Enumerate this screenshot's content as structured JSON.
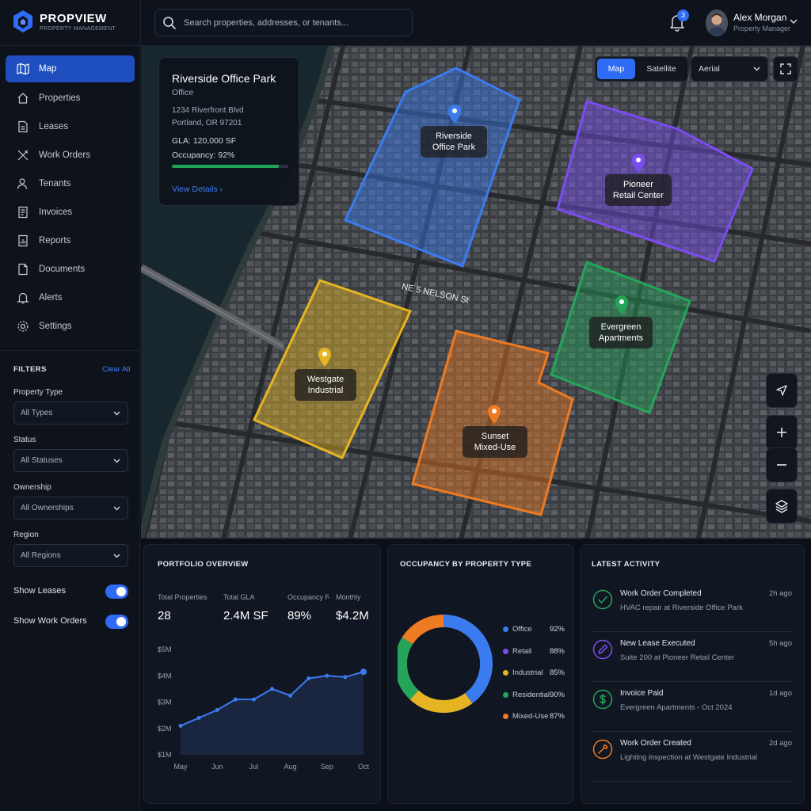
{
  "app": {
    "name": "PROPVIEW",
    "tagline": "PROPERTY MANAGEMENT"
  },
  "header": {
    "search_placeholder": "Search properties, addresses, or tenants...",
    "notification_count": "3",
    "user": {
      "name": "Alex Morgan",
      "role": "Property Manager"
    }
  },
  "sidebar": {
    "items": [
      {
        "label": "Map",
        "icon": "map-icon",
        "active": true
      },
      {
        "label": "Properties",
        "icon": "home-icon"
      },
      {
        "label": "Leases",
        "icon": "document-icon"
      },
      {
        "label": "Work Orders",
        "icon": "tools-icon"
      },
      {
        "label": "Tenants",
        "icon": "users-icon"
      },
      {
        "label": "Invoices",
        "icon": "invoice-icon"
      },
      {
        "label": "Reports",
        "icon": "report-icon"
      },
      {
        "label": "Documents",
        "icon": "file-icon"
      },
      {
        "label": "Alerts",
        "icon": "bell-icon"
      },
      {
        "label": "Settings",
        "icon": "gear-icon"
      }
    ]
  },
  "filters": {
    "title": "FILTERS",
    "clear_all": "Clear All",
    "property_type": {
      "label": "Property Type",
      "value": "All Types"
    },
    "status": {
      "label": "Status",
      "value": "All Statuses"
    },
    "ownership": {
      "label": "Ownership",
      "value": "All Ownerships"
    },
    "region": {
      "label": "Region",
      "value": "All Regions"
    },
    "show_leases": {
      "label": "Show Leases",
      "on": true
    },
    "show_work_orders": {
      "label": "Show Work Orders",
      "on": true
    }
  },
  "map": {
    "view_options": [
      "Map",
      "Satellite"
    ],
    "active_view": "Map",
    "layer": "Aerial",
    "info_card": {
      "title": "Riverside Office Park",
      "type": "Office",
      "address_line1": "1234 Riverfront Blvd",
      "address_line2": "Portland, OR 97201",
      "gla": "GLA: 120,000 SF",
      "occupancy": "Occupancy: 92%",
      "occupancy_value": 0.92,
      "link": "View Details"
    },
    "properties": [
      {
        "name": "Riverside Office Park",
        "color": "#3b7bf0"
      },
      {
        "name": "Pioneer Retail Center",
        "color": "#7b4df0"
      },
      {
        "name": "Evergreen Apartments",
        "color": "#25a55a"
      },
      {
        "name": "Westgate Industrial",
        "color": "#e6b422"
      },
      {
        "name": "Sunset Mixed-Use",
        "color": "#ee7a22"
      }
    ],
    "street_labels": [
      "NE 5 NELSON St"
    ]
  },
  "portfolio": {
    "title": "PORTFOLIO OVERVIEW",
    "stats": [
      {
        "label": "Total Properties",
        "value": "28"
      },
      {
        "label": "Total GLA",
        "value": "2.4M SF"
      },
      {
        "label": "Occupancy Rate",
        "value": "89%"
      },
      {
        "label": "Monthly",
        "value": "$4.2M"
      }
    ],
    "chart_data": {
      "type": "line",
      "x": [
        "May",
        "",
        "Jun",
        "",
        "Jul",
        "",
        "Aug",
        "",
        "Sep",
        "",
        "Oct"
      ],
      "tick_labels_x": [
        "May",
        "Jun",
        "Jul",
        "Aug",
        "Sep",
        "Oct"
      ],
      "values": [
        2.1,
        2.4,
        2.7,
        3.1,
        3.1,
        3.5,
        3.25,
        3.9,
        4.0,
        3.95,
        4.15
      ],
      "ylim": [
        1,
        5
      ],
      "tick_labels_y": [
        "$5M",
        "$4M",
        "$3M",
        "$2M",
        "$1M"
      ],
      "color": "#3b7bf0"
    }
  },
  "occupancy": {
    "title": "OCCUPANCY BY PROPERTY TYPE",
    "chart_data": {
      "type": "pie",
      "categories": [
        "Office",
        "Retail",
        "Industrial",
        "Residential",
        "Mixed-Use"
      ],
      "labels": [
        "92%",
        "88%",
        "85%",
        "90%",
        "87%"
      ],
      "colors": [
        "#3b7bf0",
        "#7b4df0",
        "#e6b422",
        "#25a55a",
        "#ee7a22"
      ],
      "shares": [
        0.4,
        0.0,
        0.22,
        0.22,
        0.16
      ]
    }
  },
  "activity": {
    "title": "LATEST ACTIVITY",
    "items": [
      {
        "title": "Work Order Completed",
        "desc": "HVAC repair at Riverside Office Park",
        "time": "2h ago",
        "color": "#25a55a",
        "icon": "check-icon"
      },
      {
        "title": "New Lease Executed",
        "desc": "Suite 200 at Pioneer Retail Center",
        "time": "5h ago",
        "color": "#7b4df0",
        "icon": "pen-icon"
      },
      {
        "title": "Invoice Paid",
        "desc": "Evergreen Apartments - Oct 2024",
        "time": "1d ago",
        "color": "#25a55a",
        "icon": "dollar-icon"
      },
      {
        "title": "Work Order Created",
        "desc": "Lighting inspection at Westgate Industrial",
        "time": "2d ago",
        "color": "#ee7a22",
        "icon": "wrench-icon"
      }
    ]
  }
}
